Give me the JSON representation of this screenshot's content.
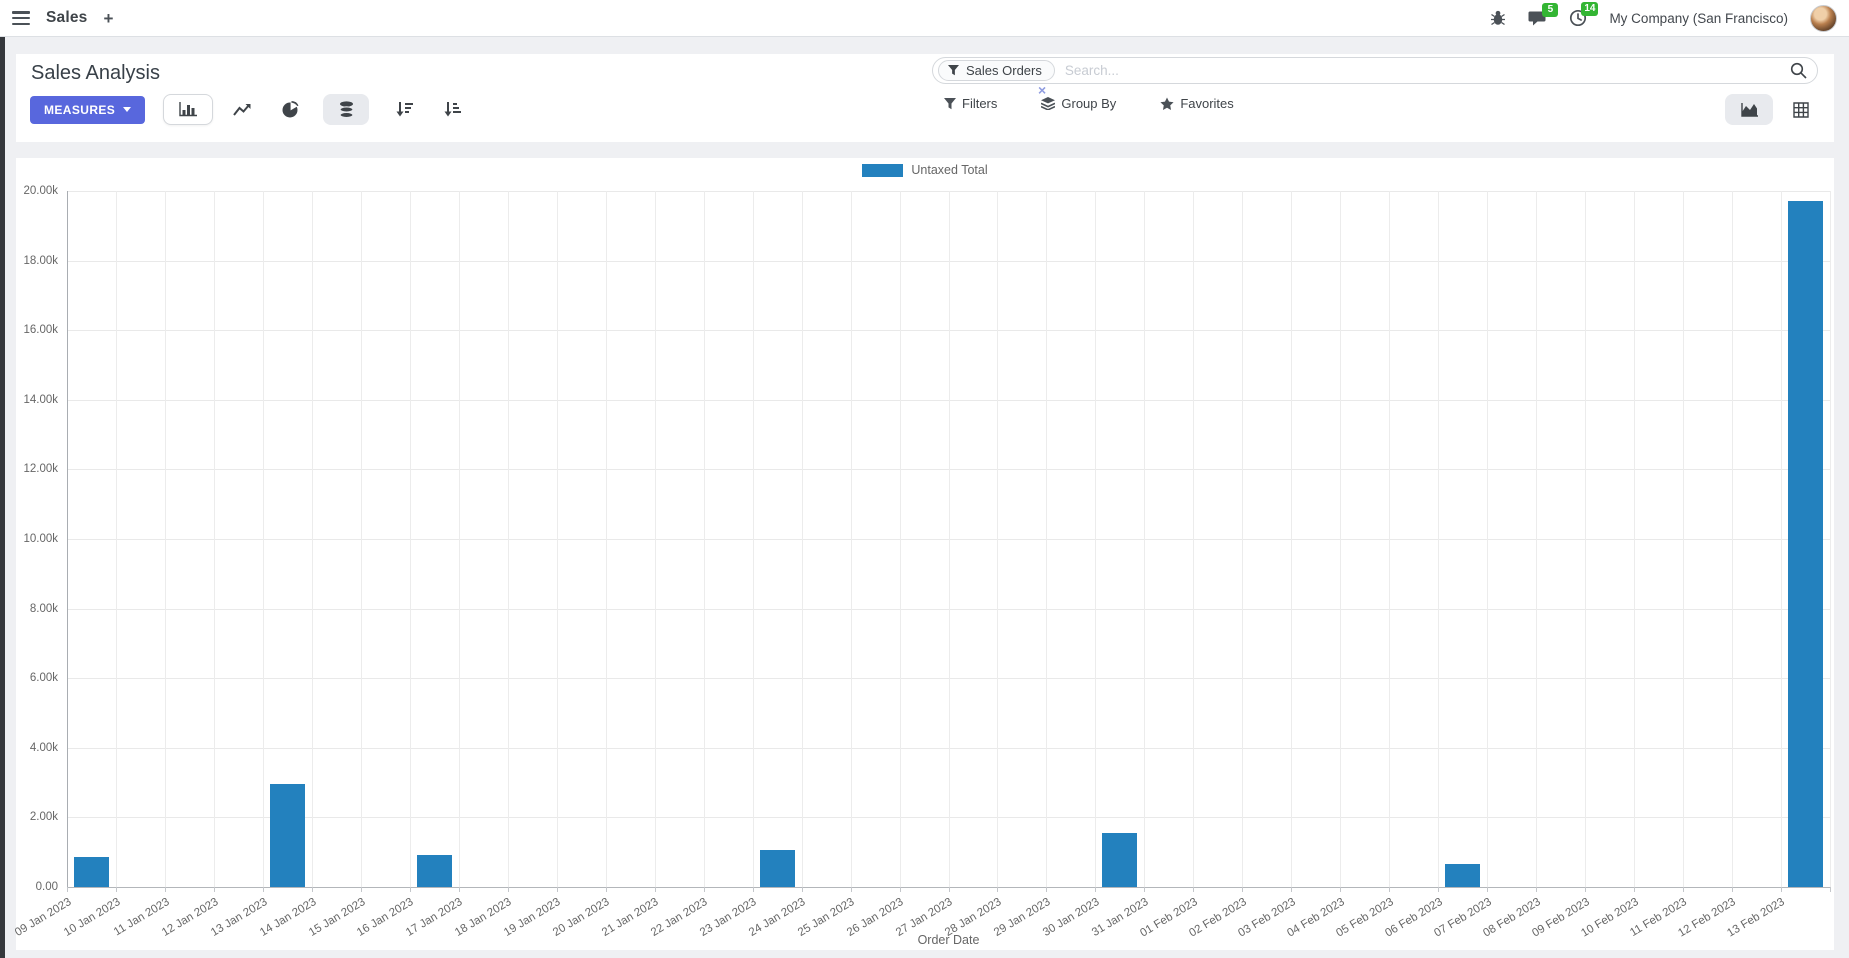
{
  "navbar": {
    "app_name": "Sales",
    "plus": "+",
    "messages_badge": "5",
    "activities_badge": "14",
    "company": "My Company (San Francisco)"
  },
  "control_panel": {
    "title": "Sales Analysis",
    "measures_label": "MEASURES",
    "search": {
      "facet_label": "Sales Orders",
      "facet_remove": "×",
      "placeholder": "Search..."
    },
    "filters_label": "Filters",
    "groupby_label": "Group By",
    "favorites_label": "Favorites"
  },
  "icons": {
    "toolbar": [
      "bar-chart-icon",
      "line-chart-icon",
      "pie-chart-icon",
      "stacked-icon",
      "sort-desc-icon",
      "sort-asc-icon"
    ],
    "view_switcher": [
      "graph-view-icon",
      "pivot-view-icon"
    ]
  },
  "colors": {
    "accent": "#5867dd",
    "bar": "#2381be",
    "badge_green": "#33b533",
    "page_bg": "#eff0f3"
  },
  "chart_data": {
    "type": "bar",
    "title": "",
    "legend_label": "Untaxed Total",
    "legend_position": "top",
    "grid": true,
    "xlabel": "Order Date",
    "ylabel": "",
    "ylim": [
      0,
      20000
    ],
    "ytick_step": 2000,
    "ytick_labels": [
      "0.00",
      "2.00k",
      "4.00k",
      "6.00k",
      "8.00k",
      "10.00k",
      "12.00k",
      "14.00k",
      "16.00k",
      "18.00k",
      "20.00k"
    ],
    "categories": [
      "09 Jan 2023",
      "10 Jan 2023",
      "11 Jan 2023",
      "12 Jan 2023",
      "13 Jan 2023",
      "14 Jan 2023",
      "15 Jan 2023",
      "16 Jan 2023",
      "17 Jan 2023",
      "18 Jan 2023",
      "19 Jan 2023",
      "20 Jan 2023",
      "21 Jan 2023",
      "22 Jan 2023",
      "23 Jan 2023",
      "24 Jan 2023",
      "25 Jan 2023",
      "26 Jan 2023",
      "27 Jan 2023",
      "28 Jan 2023",
      "29 Jan 2023",
      "30 Jan 2023",
      "31 Jan 2023",
      "01 Feb 2023",
      "02 Feb 2023",
      "03 Feb 2023",
      "04 Feb 2023",
      "05 Feb 2023",
      "06 Feb 2023",
      "07 Feb 2023",
      "08 Feb 2023",
      "09 Feb 2023",
      "10 Feb 2023",
      "11 Feb 2023",
      "12 Feb 2023",
      "13 Feb 2023"
    ],
    "series": [
      {
        "name": "Untaxed Total",
        "color": "#2381be",
        "values": [
          850,
          0,
          0,
          0,
          2950,
          0,
          0,
          930,
          0,
          0,
          0,
          0,
          0,
          0,
          1070,
          0,
          0,
          0,
          0,
          0,
          0,
          1550,
          0,
          0,
          0,
          0,
          0,
          0,
          660,
          0,
          0,
          0,
          0,
          0,
          0,
          19700
        ]
      }
    ]
  }
}
